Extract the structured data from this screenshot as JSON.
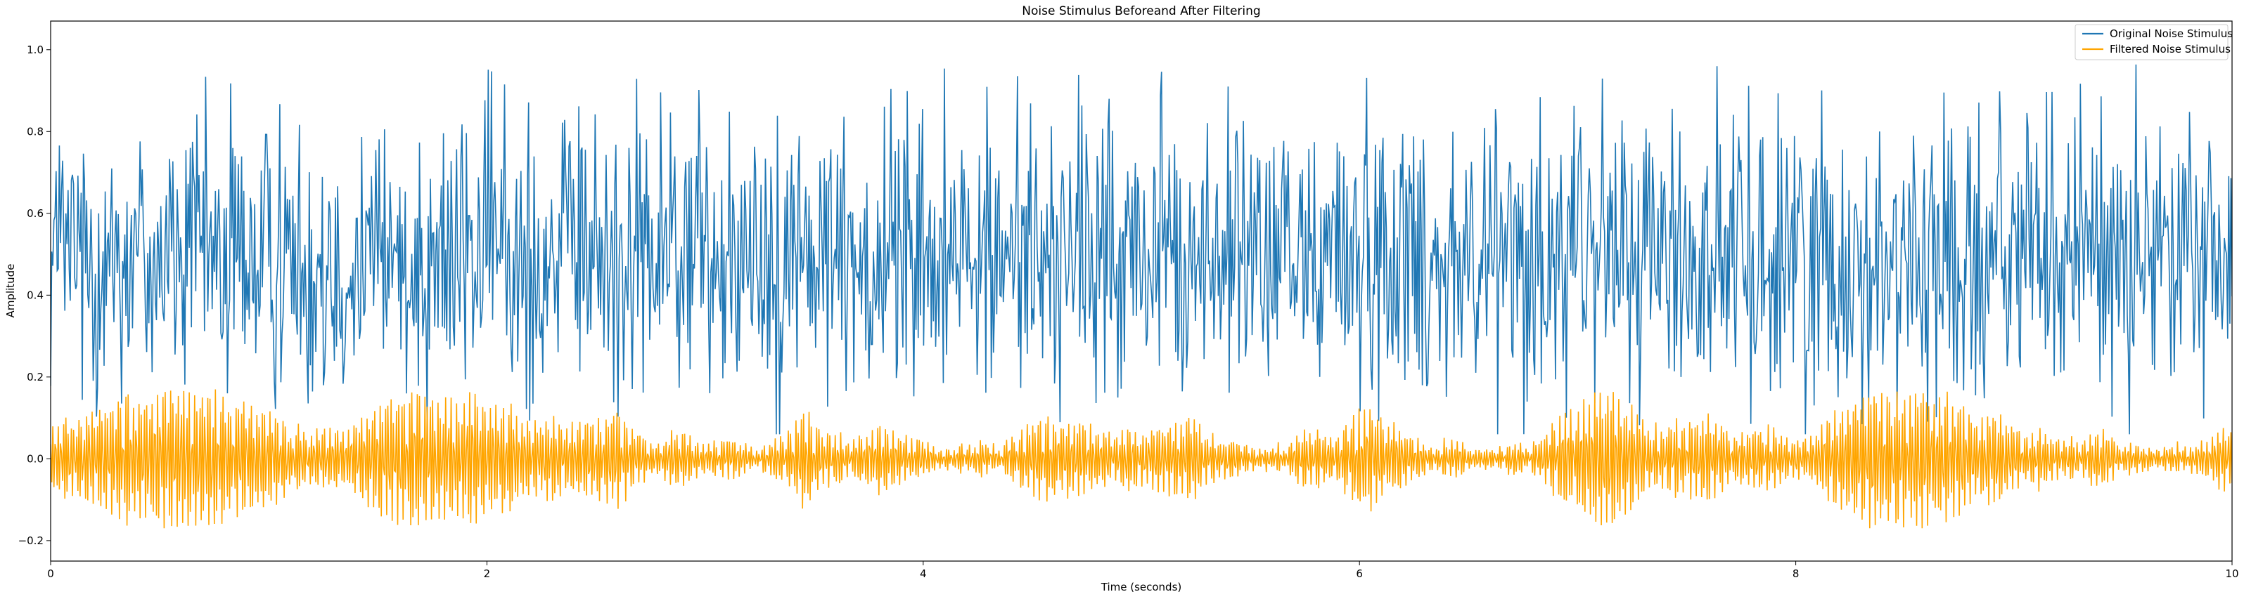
{
  "chart_data": {
    "type": "line",
    "title": "Noise Stimulus Beforeand After Filtering",
    "xlabel": "Time (seconds)",
    "ylabel": "Amplitude",
    "xlim": [
      0,
      10
    ],
    "ylim": [
      -0.25,
      1.07
    ],
    "x_ticks": [
      0,
      2,
      4,
      6,
      8,
      10
    ],
    "x_tick_labels": [
      "0",
      "2",
      "4",
      "6",
      "8",
      "10"
    ],
    "y_ticks": [
      -0.2,
      0.0,
      0.2,
      0.4,
      0.6,
      0.8,
      1.0
    ],
    "y_tick_labels": [
      "−0.2",
      "0.0",
      "0.2",
      "0.4",
      "0.6",
      "0.8",
      "1.0"
    ],
    "legend_position": "upper-right",
    "series": [
      {
        "name": "Original Noise Stimulus",
        "color": "#1f77b4",
        "signal": "uniform-like random noise",
        "sample_count": 2000,
        "mean": 0.5,
        "min": 0.06,
        "max": 1.01
      },
      {
        "name": "Filtered Noise Stimulus",
        "color": "#ffa500",
        "signal": "band-pass filtered noise",
        "sample_count": 2000,
        "mean": 0.0,
        "min": -0.2,
        "max": 0.17
      }
    ]
  }
}
